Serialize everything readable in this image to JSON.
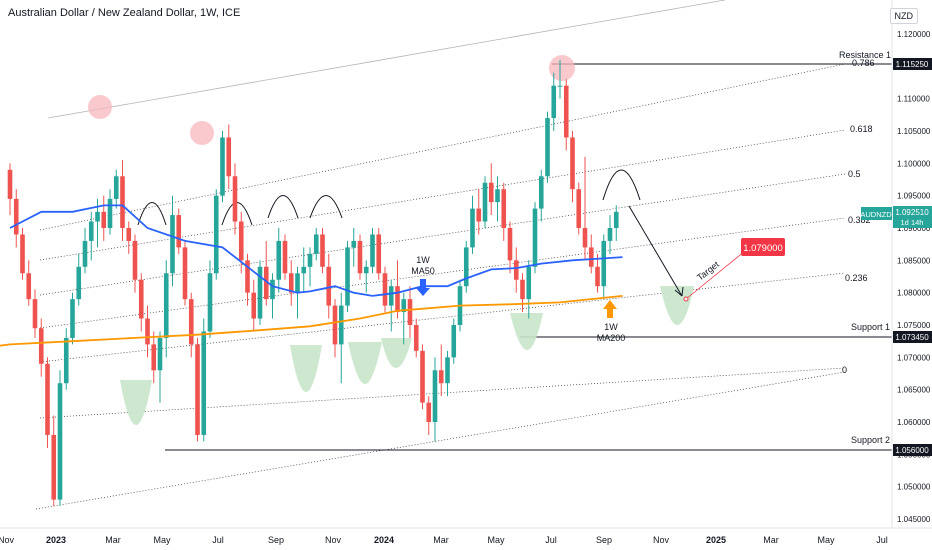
{
  "header": {
    "title": "Australian Dollar / New Zealand Dollar, 1W, ICE",
    "currency": "NZD"
  },
  "chart_data": {
    "type": "candlestick",
    "symbol": "AUDNZD",
    "timeframe": "1W",
    "x_ticks": [
      "Nov",
      "2023",
      "Mar",
      "May",
      "Jul",
      "Sep",
      "Nov",
      "2024",
      "Mar",
      "May",
      "Jul",
      "Sep",
      "Nov",
      "2025",
      "Mar",
      "May",
      "Jul"
    ],
    "y_ticks": [
      1.045,
      1.05,
      1.055,
      1.06,
      1.065,
      1.07,
      1.075,
      1.08,
      1.085,
      1.09,
      1.095,
      1.1,
      1.105,
      1.11,
      1.115,
      1.12
    ],
    "ylim": [
      1.0445,
      1.1225
    ],
    "price_badge": {
      "symbol": "AUDNZD",
      "value": "1.092510",
      "countdown": "1d 14h"
    },
    "levels": [
      {
        "name": "Resistance 1",
        "value": "1.115250",
        "price": 1.11525
      },
      {
        "name": "Support 1",
        "value": "1.073450",
        "price": 1.07345
      },
      {
        "name": "Support 2",
        "value": "1.056000",
        "price": 1.056
      }
    ],
    "fib_labels": [
      "0.786",
      "0.618",
      "0.5",
      "0.382",
      "0.236",
      "0"
    ],
    "annotations": {
      "ma50": "1W\nMA50",
      "ma200": "1W\nMA200",
      "target_label": "Target",
      "target_value": "1.079000"
    },
    "colors": {
      "up": "#26a69a",
      "down": "#ef5350",
      "ma50": "#2962ff",
      "ma200": "#ff9800",
      "target": "#f23645"
    },
    "candles": [
      [
        1.099,
        1.1,
        1.092,
        1.0945
      ],
      [
        1.0945,
        1.096,
        1.087,
        1.089
      ],
      [
        1.089,
        1.09,
        1.082,
        1.083
      ],
      [
        1.083,
        1.085,
        1.078,
        1.079
      ],
      [
        1.079,
        1.0805,
        1.073,
        1.0745
      ],
      [
        1.0745,
        1.076,
        1.067,
        1.069
      ],
      [
        1.069,
        1.07,
        1.056,
        1.058
      ],
      [
        1.058,
        1.061,
        1.047,
        1.048
      ],
      [
        1.048,
        1.068,
        1.047,
        1.066
      ],
      [
        1.066,
        1.0745,
        1.065,
        1.073
      ],
      [
        1.073,
        1.08,
        1.072,
        1.079
      ],
      [
        1.079,
        1.086,
        1.078,
        1.084
      ],
      [
        1.084,
        1.09,
        1.083,
        1.088
      ],
      [
        1.088,
        1.0925,
        1.085,
        1.091
      ],
      [
        1.091,
        1.0945,
        1.087,
        1.0925
      ],
      [
        1.0925,
        1.095,
        1.088,
        1.09
      ],
      [
        1.09,
        1.096,
        1.089,
        1.0945
      ],
      [
        1.0945,
        1.099,
        1.093,
        1.098
      ],
      [
        1.098,
        1.1005,
        1.088,
        1.09
      ],
      [
        1.09,
        1.091,
        1.086,
        1.088
      ],
      [
        1.088,
        1.089,
        1.08,
        1.082
      ],
      [
        1.082,
        1.083,
        1.074,
        1.076
      ],
      [
        1.076,
        1.078,
        1.07,
        1.072
      ],
      [
        1.072,
        1.074,
        1.066,
        1.068
      ],
      [
        1.068,
        1.074,
        1.063,
        1.073
      ],
      [
        1.073,
        1.085,
        1.07,
        1.083
      ],
      [
        1.083,
        1.095,
        1.081,
        1.092
      ],
      [
        1.092,
        1.093,
        1.086,
        1.087
      ],
      [
        1.087,
        1.088,
        1.078,
        1.079
      ],
      [
        1.079,
        1.08,
        1.07,
        1.072
      ],
      [
        1.072,
        1.073,
        1.057,
        1.058
      ],
      [
        1.058,
        1.076,
        1.057,
        1.074
      ],
      [
        1.074,
        1.085,
        1.073,
        1.083
      ],
      [
        1.083,
        1.096,
        1.082,
        1.095
      ],
      [
        1.095,
        1.105,
        1.094,
        1.104
      ],
      [
        1.104,
        1.106,
        1.096,
        1.098
      ],
      [
        1.098,
        1.1,
        1.089,
        1.091
      ],
      [
        1.091,
        1.0925,
        1.083,
        1.085
      ],
      [
        1.085,
        1.086,
        1.078,
        1.08
      ],
      [
        1.08,
        1.082,
        1.074,
        1.076
      ],
      [
        1.076,
        1.085,
        1.075,
        1.084
      ],
      [
        1.084,
        1.088,
        1.078,
        1.079
      ],
      [
        1.079,
        1.083,
        1.076,
        1.082
      ],
      [
        1.082,
        1.09,
        1.08,
        1.088
      ],
      [
        1.088,
        1.089,
        1.082,
        1.083
      ],
      [
        1.083,
        1.085,
        1.078,
        1.08
      ],
      [
        1.08,
        1.084,
        1.076,
        1.083
      ],
      [
        1.083,
        1.087,
        1.08,
        1.084
      ],
      [
        1.084,
        1.087,
        1.081,
        1.086
      ],
      [
        1.086,
        1.09,
        1.085,
        1.089
      ],
      [
        1.089,
        1.09,
        1.083,
        1.084
      ],
      [
        1.084,
        1.086,
        1.076,
        1.078
      ],
      [
        1.078,
        1.079,
        1.07,
        1.072
      ],
      [
        1.072,
        1.08,
        1.066,
        1.078
      ],
      [
        1.078,
        1.088,
        1.077,
        1.087
      ],
      [
        1.087,
        1.09,
        1.084,
        1.088
      ],
      [
        1.088,
        1.089,
        1.082,
        1.083
      ],
      [
        1.083,
        1.085,
        1.08,
        1.084
      ],
      [
        1.084,
        1.09,
        1.083,
        1.089
      ],
      [
        1.089,
        1.09,
        1.082,
        1.083
      ],
      [
        1.083,
        1.084,
        1.077,
        1.078
      ],
      [
        1.078,
        1.082,
        1.074,
        1.081
      ],
      [
        1.081,
        1.085,
        1.076,
        1.077
      ],
      [
        1.077,
        1.08,
        1.072,
        1.079
      ],
      [
        1.079,
        1.081,
        1.073,
        1.075
      ],
      [
        1.075,
        1.076,
        1.07,
        1.071
      ],
      [
        1.071,
        1.072,
        1.062,
        1.063
      ],
      [
        1.063,
        1.064,
        1.058,
        1.06
      ],
      [
        1.06,
        1.07,
        1.057,
        1.068
      ],
      [
        1.068,
        1.072,
        1.064,
        1.066
      ],
      [
        1.066,
        1.071,
        1.064,
        1.07
      ],
      [
        1.07,
        1.076,
        1.069,
        1.075
      ],
      [
        1.075,
        1.082,
        1.074,
        1.081
      ],
      [
        1.081,
        1.088,
        1.08,
        1.087
      ],
      [
        1.087,
        1.095,
        1.086,
        1.093
      ],
      [
        1.093,
        1.096,
        1.089,
        1.091
      ],
      [
        1.091,
        1.098,
        1.09,
        1.097
      ],
      [
        1.097,
        1.1,
        1.092,
        1.094
      ],
      [
        1.094,
        1.098,
        1.091,
        1.096
      ],
      [
        1.096,
        1.097,
        1.088,
        1.09
      ],
      [
        1.09,
        1.091,
        1.083,
        1.085
      ],
      [
        1.085,
        1.087,
        1.08,
        1.082
      ],
      [
        1.082,
        1.083,
        1.077,
        1.079
      ],
      [
        1.079,
        1.085,
        1.076,
        1.084
      ],
      [
        1.084,
        1.094,
        1.083,
        1.093
      ],
      [
        1.093,
        1.099,
        1.091,
        1.098
      ],
      [
        1.098,
        1.108,
        1.097,
        1.107
      ],
      [
        1.107,
        1.114,
        1.105,
        1.112
      ],
      [
        1.112,
        1.116,
        1.11,
        1.112
      ],
      [
        1.112,
        1.113,
        1.102,
        1.104
      ],
      [
        1.104,
        1.105,
        1.094,
        1.096
      ],
      [
        1.096,
        1.097,
        1.089,
        1.09
      ],
      [
        1.09,
        1.101,
        1.085,
        1.087
      ],
      [
        1.087,
        1.089,
        1.083,
        1.084
      ],
      [
        1.084,
        1.086,
        1.08,
        1.081
      ],
      [
        1.081,
        1.089,
        1.079,
        1.088
      ],
      [
        1.088,
        1.092,
        1.086,
        1.09
      ],
      [
        1.09,
        1.0935,
        1.088,
        1.0925
      ]
    ],
    "ma50": [
      [
        0,
        1.09
      ],
      [
        5,
        1.0925
      ],
      [
        10,
        1.0925
      ],
      [
        15,
        1.0935
      ],
      [
        18,
        1.0935
      ],
      [
        22,
        1.09
      ],
      [
        28,
        1.088
      ],
      [
        34,
        1.087
      ],
      [
        38,
        1.084
      ],
      [
        42,
        1.081
      ],
      [
        46,
        1.08
      ],
      [
        48,
        1.0802
      ],
      [
        52,
        1.081
      ],
      [
        55,
        1.08
      ],
      [
        58,
        1.0795
      ],
      [
        62,
        1.08
      ],
      [
        66,
        1.081
      ],
      [
        70,
        1.081
      ],
      [
        73,
        1.0822
      ],
      [
        77,
        1.0836
      ],
      [
        81,
        1.0838
      ],
      [
        85,
        1.0845
      ],
      [
        90,
        1.085
      ],
      [
        95,
        1.0853
      ],
      [
        98,
        1.0855
      ]
    ],
    "ma200": [
      [
        0,
        1.072
      ],
      [
        10,
        1.0725
      ],
      [
        20,
        1.073
      ],
      [
        30,
        1.0735
      ],
      [
        40,
        1.0742
      ],
      [
        48,
        1.0748
      ],
      [
        56,
        1.076
      ],
      [
        62,
        1.0772
      ],
      [
        72,
        1.078
      ],
      [
        80,
        1.0782
      ],
      [
        88,
        1.0785
      ],
      [
        98,
        1.0795
      ]
    ]
  }
}
